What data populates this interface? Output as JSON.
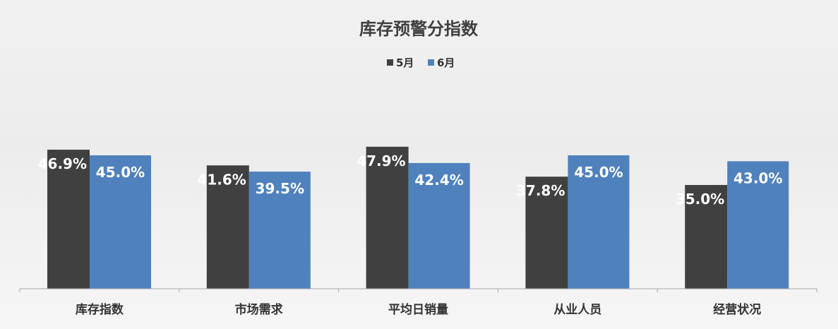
{
  "chart_data": {
    "type": "bar",
    "title": "库存预警分指数",
    "categories": [
      "库存指数",
      "市场需求",
      "平均日销量",
      "从业人员",
      "经营状况"
    ],
    "series": [
      {
        "name": "5月",
        "color": "#404040",
        "values": [
          46.9,
          41.6,
          47.9,
          37.8,
          35.0
        ],
        "labels": [
          "46.9%",
          "41.6%",
          "47.9%",
          "37.8%",
          "35.0%"
        ]
      },
      {
        "name": "6月",
        "color": "#4f81bd",
        "values": [
          45.0,
          39.5,
          42.4,
          45.0,
          43.0
        ],
        "labels": [
          "45.0%",
          "39.5%",
          "42.4%",
          "45.0%",
          "43.0%"
        ]
      }
    ],
    "legend_position": "top-center",
    "grid": false,
    "xlabel": "",
    "ylabel": ""
  }
}
